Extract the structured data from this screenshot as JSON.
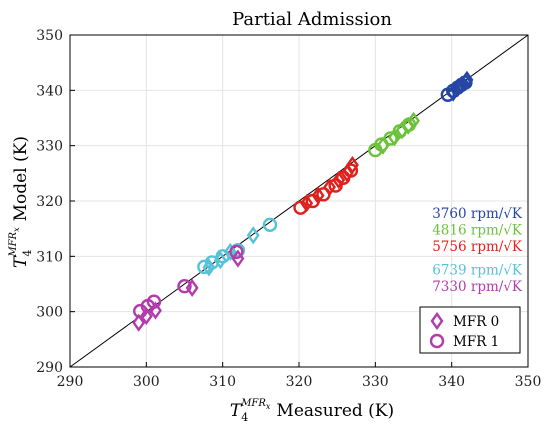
{
  "chart_data": {
    "type": "scatter",
    "title": "Partial Admission",
    "xlabel": {
      "symbol": "T",
      "sub": "4",
      "sup": "MFR",
      "supsub": "x",
      "text": "Measured (K)"
    },
    "ylabel": {
      "symbol": "T",
      "sub": "4",
      "sup": "MFR",
      "supsub": "x",
      "text": "Model (K)"
    },
    "xlim": [
      290,
      350
    ],
    "ylim": [
      290,
      350
    ],
    "xticks": [
      290,
      300,
      310,
      320,
      330,
      340,
      350
    ],
    "yticks": [
      290,
      300,
      310,
      320,
      330,
      340,
      350
    ],
    "grid": true,
    "reference_line": "y = x",
    "speed_unit": "rpm/√K",
    "series": [
      {
        "name": "3760",
        "color": "#2646a6",
        "mfr0": [
          [
            340.2,
            339.6
          ],
          [
            340.8,
            340.4
          ],
          [
            341.3,
            341.0
          ],
          [
            341.8,
            341.5
          ],
          [
            342.0,
            341.9
          ]
        ],
        "mfr1": [
          [
            339.5,
            339.2
          ],
          [
            340.2,
            339.9
          ],
          [
            340.8,
            340.5
          ],
          [
            341.3,
            341.0
          ],
          [
            341.8,
            341.4
          ]
        ]
      },
      {
        "name": "4816",
        "color": "#6cc33a",
        "mfr0": [
          [
            331.0,
            330.0
          ],
          [
            332.5,
            331.5
          ],
          [
            333.5,
            332.8
          ],
          [
            334.3,
            333.6
          ],
          [
            335.0,
            334.5
          ]
        ],
        "mfr1": [
          [
            330.0,
            329.2
          ],
          [
            330.8,
            330.2
          ],
          [
            332.0,
            331.3
          ],
          [
            333.2,
            332.6
          ],
          [
            334.4,
            333.8
          ]
        ]
      },
      {
        "name": "5756",
        "color": "#e0201d",
        "mfr0": [
          [
            321.0,
            319.6
          ],
          [
            322.5,
            321.0
          ],
          [
            324.0,
            322.5
          ],
          [
            325.2,
            323.8
          ],
          [
            326.3,
            325.0
          ],
          [
            327.0,
            326.5
          ]
        ],
        "mfr1": [
          [
            320.2,
            318.8
          ],
          [
            321.8,
            320.0
          ],
          [
            323.2,
            321.2
          ],
          [
            324.8,
            322.8
          ],
          [
            325.8,
            324.2
          ],
          [
            326.8,
            325.5
          ]
        ]
      },
      {
        "name": "6739",
        "color": "#55c2d7",
        "mfr0": [
          [
            308.2,
            308.0
          ],
          [
            309.7,
            309.3
          ],
          [
            311.0,
            310.8
          ],
          [
            314.0,
            313.8
          ]
        ],
        "mfr1": [
          [
            307.6,
            308.1
          ],
          [
            308.6,
            308.9
          ],
          [
            310.0,
            310.0
          ],
          [
            312.0,
            311.1
          ],
          [
            316.2,
            315.7
          ]
        ]
      },
      {
        "name": "7330",
        "color": "#b23cab",
        "mfr0": [
          [
            299.0,
            298.0
          ],
          [
            300.0,
            299.2
          ],
          [
            301.2,
            300.2
          ],
          [
            306.0,
            304.3
          ],
          [
            312.0,
            309.6
          ]
        ],
        "mfr1": [
          [
            299.2,
            300.1
          ],
          [
            300.2,
            301.0
          ],
          [
            301.0,
            301.8
          ],
          [
            305.0,
            304.6
          ],
          [
            311.8,
            310.8
          ]
        ]
      }
    ],
    "legend": {
      "placement": "right-middle",
      "markers": [
        {
          "label": "MFR 0",
          "marker": "diamond"
        },
        {
          "label": "MFR 1",
          "marker": "circle"
        }
      ],
      "markers_placement": "bottom-right",
      "marker_color": "#b23cab"
    }
  }
}
